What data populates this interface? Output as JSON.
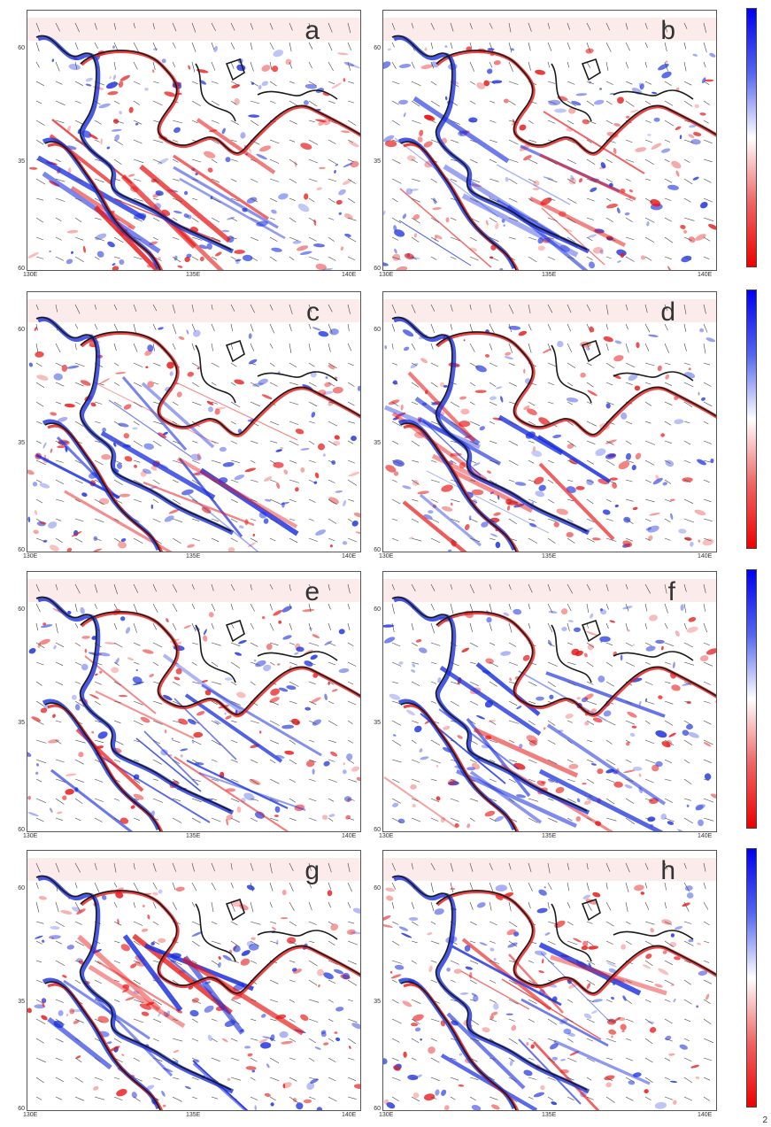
{
  "panels": [
    {
      "label": "a"
    },
    {
      "label": "b"
    },
    {
      "label": "c"
    },
    {
      "label": "d"
    },
    {
      "label": "e"
    },
    {
      "label": "f"
    },
    {
      "label": "g"
    },
    {
      "label": "h"
    }
  ],
  "y_ticks": [
    "60",
    "35",
    "60"
  ],
  "x_ticks": [
    "130E",
    "135E",
    "140E"
  ],
  "corner_text": "2",
  "colors": {
    "positive": "#1a2fe0",
    "negative": "#e81818",
    "coast": "#1a1a1a",
    "frame": "#555555"
  }
}
